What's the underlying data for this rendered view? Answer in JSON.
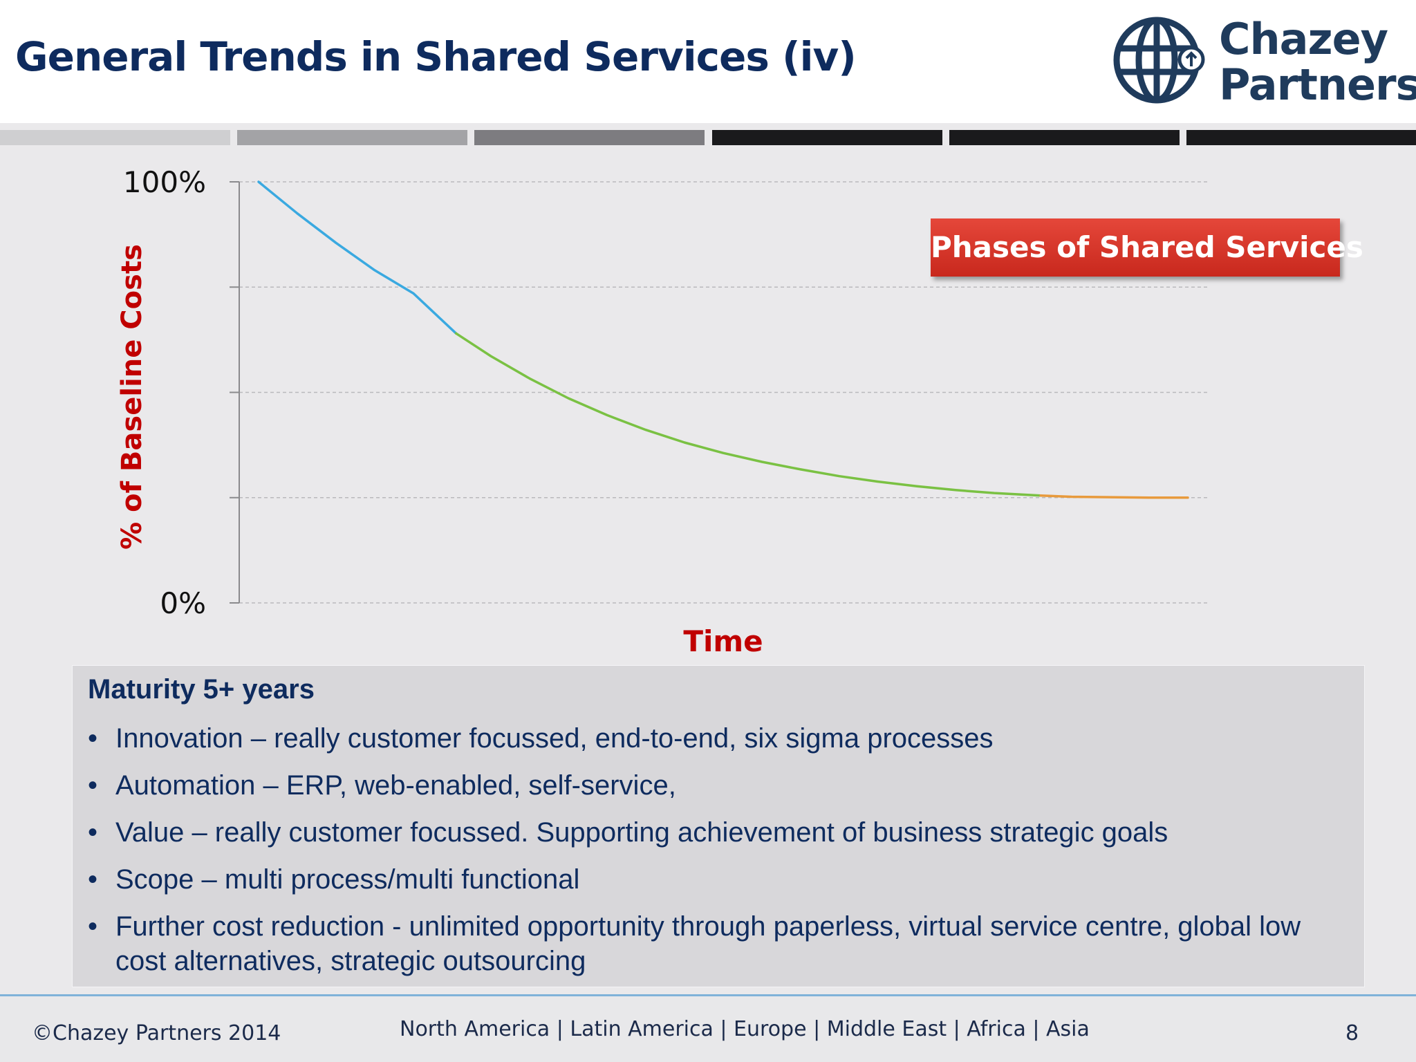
{
  "slide": {
    "title": "General Trends in Shared Services (iv)",
    "logo": {
      "line1": "Chazey",
      "line2": "Partners",
      "icon": "globe-arrow-icon"
    }
  },
  "phase_bar": {
    "segment_colors": [
      "#cfcfd1",
      "#a3a3a6",
      "#7d7c80",
      "#1a1a1c",
      "#1a1a1c",
      "#1a1a1c"
    ]
  },
  "chart_data": {
    "type": "line",
    "ylabel": "% of Baseline Costs",
    "xlabel": "Time",
    "ytick_labels": [
      "100%",
      "0%"
    ],
    "ylim": [
      0,
      100
    ],
    "xlim": [
      0,
      100
    ],
    "grid": true,
    "gridline_values": [
      0,
      25,
      50,
      75,
      100
    ],
    "series": [
      {
        "color": "#3aa9e0",
        "x": [
          2,
          6,
          10,
          14,
          18,
          22.4
        ],
        "y": [
          100,
          92.5,
          85.5,
          79,
          73.5,
          64
        ]
      },
      {
        "color": "#7ac143",
        "x": [
          22.4,
          26,
          30,
          34,
          38,
          42,
          46,
          50,
          54,
          58,
          62,
          66,
          70,
          74,
          78,
          82.8
        ],
        "y": [
          64,
          58.6,
          53.3,
          48.6,
          44.6,
          41.1,
          38.1,
          35.6,
          33.5,
          31.7,
          30.1,
          28.8,
          27.7,
          26.8,
          26.1,
          25.5
        ]
      },
      {
        "color": "#e89a3c",
        "x": [
          82.8,
          86,
          90,
          94,
          98
        ],
        "y": [
          25.5,
          25.2,
          25.1,
          25.0,
          25.0
        ]
      }
    ],
    "annotation": "Phases of Shared Services"
  },
  "info": {
    "heading": "Maturity 5+ years",
    "bullet": "•",
    "items": [
      "Innovation – really customer focussed, end-to-end, six sigma processes",
      "Automation – ERP, web-enabled, self-service,",
      "Value – really customer focussed.  Supporting achievement of business strategic goals",
      "Scope – multi process/multi functional",
      "Further cost reduction - unlimited opportunity through paperless, virtual service centre, global low cost alternatives, strategic outsourcing"
    ]
  },
  "footer": {
    "copyright": "©Chazey Partners 2014",
    "regions": "North America | Latin America | Europe | Middle East | Africa | Asia",
    "page_number": "8"
  },
  "colors": {
    "title_navy": "#0e2b5e",
    "axis_label_red": "#c00000",
    "badge_red": "#d63a2e"
  }
}
